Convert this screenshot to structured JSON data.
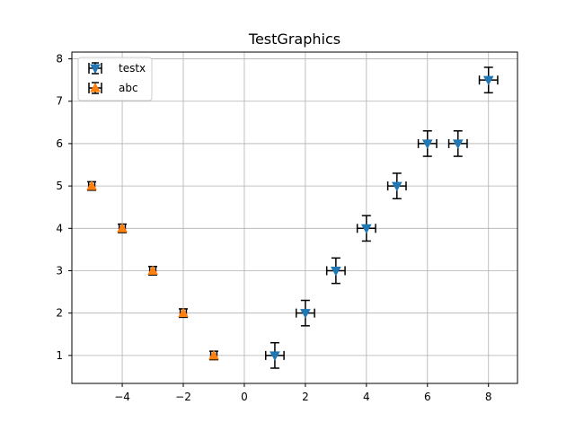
{
  "chart_data": {
    "type": "scatter",
    "title": "TestGraphics",
    "xlabel": "",
    "ylabel": "",
    "xlim": [
      -5.65,
      8.95
    ],
    "ylim": [
      0.34,
      8.16
    ],
    "xticks": [
      -4,
      -2,
      0,
      2,
      4,
      6,
      8
    ],
    "yticks": [
      1,
      2,
      3,
      4,
      5,
      6,
      7,
      8
    ],
    "xtick_labels": [
      "−4",
      "−2",
      "0",
      "2",
      "4",
      "6",
      "8"
    ],
    "ytick_labels": [
      "1",
      "2",
      "3",
      "4",
      "5",
      "6",
      "7",
      "8"
    ],
    "grid": true,
    "legend_position": "top-left",
    "series": [
      {
        "name": "testx",
        "color": "#1f77b4",
        "marker": "triangle-down",
        "x": [
          1,
          2,
          3,
          4,
          5,
          6,
          7,
          8
        ],
        "y": [
          1,
          2,
          3,
          4,
          5,
          6,
          6,
          7.5
        ],
        "xerr": 0.3,
        "yerr": 0.3
      },
      {
        "name": "abc",
        "color": "#ff7f0e",
        "marker": "triangle-up",
        "x": [
          -1,
          -2,
          -3,
          -4,
          -5
        ],
        "y": [
          1,
          2,
          3,
          4,
          5
        ],
        "xerr": 0.1,
        "yerr": 0.1
      }
    ]
  }
}
